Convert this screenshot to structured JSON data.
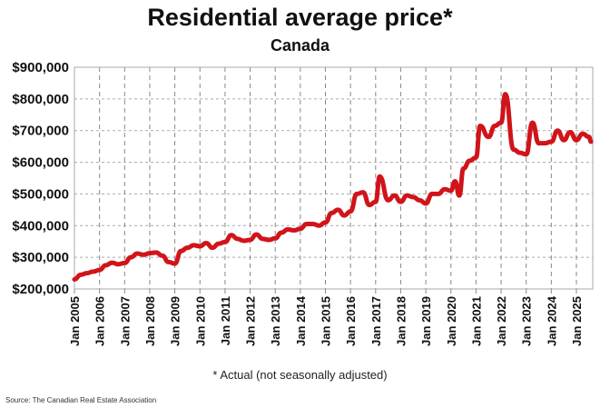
{
  "chart_data": {
    "type": "line",
    "title": "Residential average price*",
    "subtitle": "Canada",
    "note": "* Actual (not seasonally adjusted)",
    "source": "Source: The Canadian Real Estate Association",
    "xlabel": "",
    "ylabel": "",
    "ylim": [
      200000,
      900000
    ],
    "yticks": [
      "$200,000",
      "$300,000",
      "$400,000",
      "$500,000",
      "$600,000",
      "$700,000",
      "$800,000",
      "$900,000"
    ],
    "xticks": [
      "Jan 2005",
      "Jan 2006",
      "Jan 2007",
      "Jan 2008",
      "Jan 2009",
      "Jan 2010",
      "Jan 2011",
      "Jan 2012",
      "Jan 2013",
      "Jan 2014",
      "Jan 2015",
      "Jan 2016",
      "Jan 2017",
      "Jan 2018",
      "Jan 2019",
      "Jan 2020",
      "Jan 2021",
      "Jan 2022",
      "Jan 2023",
      "Jan 2024",
      "Jan 2025"
    ],
    "grid": true,
    "line_color": "#d0141a",
    "series": [
      {
        "x": [
          "2005-01",
          "2005-04",
          "2005-07",
          "2005-10",
          "2006-01",
          "2006-04",
          "2006-07",
          "2006-10",
          "2007-01",
          "2007-04",
          "2007-07",
          "2007-10",
          "2008-01",
          "2008-04",
          "2008-07",
          "2008-10",
          "2009-01",
          "2009-04",
          "2009-07",
          "2009-10",
          "2010-01",
          "2010-04",
          "2010-07",
          "2010-10",
          "2011-01",
          "2011-04",
          "2011-07",
          "2011-10",
          "2012-01",
          "2012-04",
          "2012-07",
          "2012-10",
          "2013-01",
          "2013-04",
          "2013-07",
          "2013-10",
          "2014-01",
          "2014-04",
          "2014-07",
          "2014-10",
          "2015-01",
          "2015-04",
          "2015-07",
          "2015-10",
          "2016-01",
          "2016-04",
          "2016-07",
          "2016-10",
          "2017-01",
          "2017-03",
          "2017-07",
          "2017-10",
          "2018-01",
          "2018-04",
          "2018-07",
          "2018-10",
          "2019-01",
          "2019-04",
          "2019-07",
          "2019-10",
          "2020-01",
          "2020-03",
          "2020-05",
          "2020-07",
          "2020-10",
          "2021-01",
          "2021-03",
          "2021-07",
          "2021-10",
          "2022-01",
          "2022-03",
          "2022-07",
          "2022-10",
          "2023-01",
          "2023-04",
          "2023-07",
          "2023-10",
          "2024-01",
          "2024-04",
          "2024-07",
          "2024-10",
          "2025-01",
          "2025-04",
          "2025-07",
          "2025-08"
        ],
        "values": [
          230000,
          245000,
          250000,
          255000,
          260000,
          275000,
          283000,
          278000,
          282000,
          300000,
          312000,
          308000,
          313000,
          315000,
          305000,
          285000,
          280000,
          320000,
          330000,
          338000,
          335000,
          345000,
          330000,
          343000,
          348000,
          370000,
          358000,
          352000,
          355000,
          372000,
          358000,
          355000,
          360000,
          378000,
          388000,
          385000,
          390000,
          405000,
          405000,
          400000,
          410000,
          440000,
          450000,
          432000,
          445000,
          500000,
          505000,
          465000,
          475000,
          555000,
          480000,
          495000,
          475000,
          495000,
          490000,
          480000,
          470000,
          500000,
          500000,
          515000,
          510000,
          540000,
          495000,
          580000,
          605000,
          615000,
          715000,
          680000,
          715000,
          725000,
          815000,
          640000,
          630000,
          625000,
          725000,
          660000,
          660000,
          665000,
          700000,
          670000,
          695000,
          670000,
          690000,
          680000,
          665000
        ]
      }
    ]
  }
}
